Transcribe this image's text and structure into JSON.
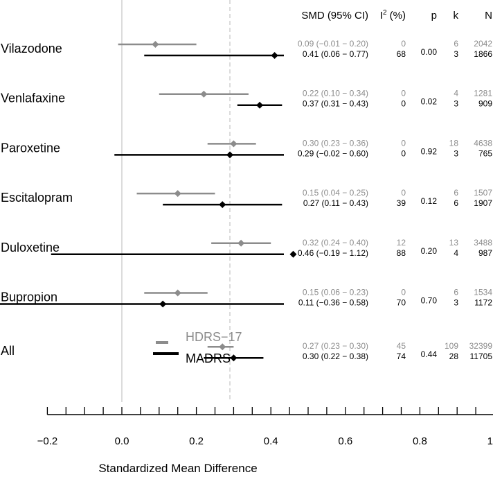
{
  "chart_data": {
    "type": "forest",
    "xlabel": "Standardized Mean Difference",
    "xlim": [
      -0.2,
      1.0
    ],
    "x_ticks": [
      "−0.2",
      "0.0",
      "0.2",
      "0.4",
      "0.6",
      "0.8",
      "1.0"
    ],
    "x_tick_values": [
      -0.2,
      0.0,
      0.2,
      0.4,
      0.6,
      0.8,
      1.0
    ],
    "reference_line": 0.0,
    "pooled_line": 0.29,
    "columns": {
      "smd": "SMD (95% CI)",
      "i2_base": "I",
      "i2_sup": "2",
      "i2_unit": " (%)",
      "p": "p",
      "k": "k",
      "n": "N"
    },
    "series": [
      {
        "name": "HDRS−17",
        "color": "#8c8c8c"
      },
      {
        "name": "MADRS",
        "color": "#000000"
      }
    ],
    "rows": [
      {
        "label": "Vilazodone",
        "p": "0.00",
        "hdrs": {
          "est": 0.09,
          "lo": -0.01,
          "hi": 0.2,
          "ci_text": "0.09 (−0.01 − 0.20)",
          "i2": "0",
          "k": "6",
          "n": "2042"
        },
        "madrs": {
          "est": 0.41,
          "lo": 0.06,
          "hi": 0.77,
          "ci_text": "0.41 (0.06 − 0.77)",
          "i2": "68",
          "k": "3",
          "n": "1866"
        }
      },
      {
        "label": "Venlafaxine",
        "p": "0.02",
        "hdrs": {
          "est": 0.22,
          "lo": 0.1,
          "hi": 0.34,
          "ci_text": "0.22 (0.10 − 0.34)",
          "i2": "0",
          "k": "4",
          "n": "1281"
        },
        "madrs": {
          "est": 0.37,
          "lo": 0.31,
          "hi": 0.43,
          "ci_text": "0.37 (0.31 − 0.43)",
          "i2": "0",
          "k": "3",
          "n": "909"
        }
      },
      {
        "label": "Paroxetine",
        "p": "0.92",
        "hdrs": {
          "est": 0.3,
          "lo": 0.23,
          "hi": 0.36,
          "ci_text": "0.30 (0.23 − 0.36)",
          "i2": "0",
          "k": "18",
          "n": "4638"
        },
        "madrs": {
          "est": 0.29,
          "lo": -0.02,
          "hi": 0.6,
          "ci_text": "0.29 (−0.02 − 0.60)",
          "i2": "0",
          "k": "3",
          "n": "765"
        }
      },
      {
        "label": "Escitalopram",
        "p": "0.12",
        "hdrs": {
          "est": 0.15,
          "lo": 0.04,
          "hi": 0.25,
          "ci_text": "0.15 (0.04 − 0.25)",
          "i2": "0",
          "k": "6",
          "n": "1507"
        },
        "madrs": {
          "est": 0.27,
          "lo": 0.11,
          "hi": 0.43,
          "ci_text": "0.27 (0.11 − 0.43)",
          "i2": "39",
          "k": "6",
          "n": "1907"
        }
      },
      {
        "label": "Duloxetine",
        "p": "0.20",
        "hdrs": {
          "est": 0.32,
          "lo": 0.24,
          "hi": 0.4,
          "ci_text": "0.32 (0.24 − 0.40)",
          "i2": "12",
          "k": "13",
          "n": "3488"
        },
        "madrs": {
          "est": 0.46,
          "lo": -0.19,
          "hi": 1.12,
          "ci_text": "0.46 (−0.19 − 1.12)",
          "i2": "88",
          "k": "4",
          "n": "987"
        }
      },
      {
        "label": "Bupropion",
        "p": "0.70",
        "hdrs": {
          "est": 0.15,
          "lo": 0.06,
          "hi": 0.23,
          "ci_text": "0.15 (0.06 − 0.23)",
          "i2": "0",
          "k": "6",
          "n": "1534"
        },
        "madrs": {
          "est": 0.11,
          "lo": -0.36,
          "hi": 0.58,
          "ci_text": "0.11 (−0.36 − 0.58)",
          "i2": "70",
          "k": "3",
          "n": "1172"
        }
      },
      {
        "label": "All",
        "p": "0.44",
        "hdrs": {
          "est": 0.27,
          "lo": 0.23,
          "hi": 0.3,
          "ci_text": "0.27 (0.23 − 0.30)",
          "i2": "45",
          "k": "109",
          "n": "32399"
        },
        "madrs": {
          "est": 0.3,
          "lo": 0.22,
          "hi": 0.38,
          "ci_text": "0.30 (0.22 − 0.38)",
          "i2": "74",
          "k": "28",
          "n": "11705"
        }
      }
    ]
  }
}
